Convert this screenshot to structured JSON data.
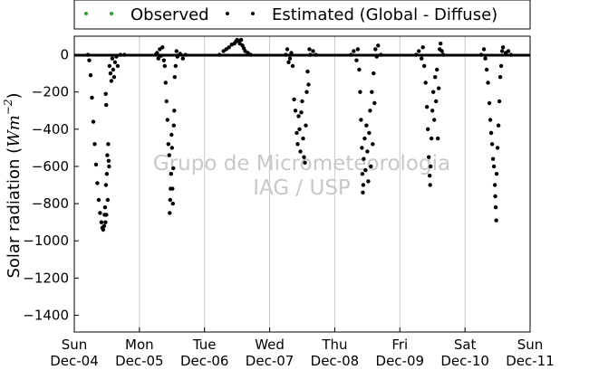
{
  "chart_data": {
    "type": "scatter",
    "ylabel": "Solar radiation",
    "ylabel_unit": "Wm",
    "ylabel_exp": "−2",
    "ylim": [
      -1490,
      100
    ],
    "yticks": [
      0,
      -200,
      -400,
      -600,
      -800,
      -1000,
      -1200,
      -1400
    ],
    "xticks": [
      {
        "day": "Sun",
        "date": "Dec-04"
      },
      {
        "day": "Mon",
        "date": "Dec-05"
      },
      {
        "day": "Tue",
        "date": "Dec-06"
      },
      {
        "day": "Wed",
        "date": "Dec-07"
      },
      {
        "day": "Thu",
        "date": "Dec-08"
      },
      {
        "day": "Fri",
        "date": "Dec-09"
      },
      {
        "day": "Sat",
        "date": "Dec-10"
      },
      {
        "day": "Sun",
        "date": "Dec-11"
      }
    ],
    "grid": "vertical",
    "legend_position": "top, outside",
    "watermark": [
      "Grupo de Micrometeorologia",
      "IAG / USP"
    ],
    "series": [
      {
        "name": "Observed",
        "color": "#2ca02c",
        "points": []
      },
      {
        "name": "Estimated (Global - Diffuse)",
        "color": "#000000",
        "points": [
          [
            "Dec-04 05:00",
            0
          ],
          [
            "Dec-04 05:30",
            -30
          ],
          [
            "Dec-04 06:00",
            -110
          ],
          [
            "Dec-04 06:30",
            -230
          ],
          [
            "Dec-04 07:00",
            -360
          ],
          [
            "Dec-04 07:30",
            -480
          ],
          [
            "Dec-04 08:00",
            -590
          ],
          [
            "Dec-04 08:30",
            -690
          ],
          [
            "Dec-04 09:00",
            -780
          ],
          [
            "Dec-04 09:30",
            -850
          ],
          [
            "Dec-04 10:00",
            -900
          ],
          [
            "Dec-04 10:20",
            -930
          ],
          [
            "Dec-04 10:40",
            -940
          ],
          [
            "Dec-04 11:00",
            -920
          ],
          [
            "Dec-04 11:10",
            -860
          ],
          [
            "Dec-04 11:20",
            -820
          ],
          [
            "Dec-04 11:30",
            -900
          ],
          [
            "Dec-04 11:40",
            -700
          ],
          [
            "Dec-04 11:50",
            -860
          ],
          [
            "Dec-04 12:00",
            -640
          ],
          [
            "Dec-04 12:10",
            -540
          ],
          [
            "Dec-04 12:20",
            -780
          ],
          [
            "Dec-04 12:30",
            -480
          ],
          [
            "Dec-04 12:40",
            -570
          ],
          [
            "Dec-04 12:50",
            -600
          ],
          [
            "Dec-04 11:35",
            -210
          ],
          [
            "Dec-04 11:45",
            -270
          ],
          [
            "Dec-04 13:00",
            -60
          ],
          [
            "Dec-04 13:20",
            -100
          ],
          [
            "Dec-04 13:40",
            -140
          ],
          [
            "Dec-04 14:00",
            -20
          ],
          [
            "Dec-04 14:20",
            -80
          ],
          [
            "Dec-04 14:40",
            -120
          ],
          [
            "Dec-04 15:00",
            -40
          ],
          [
            "Dec-04 15:30",
            -10
          ],
          [
            "Dec-04 16:00",
            -60
          ],
          [
            "Dec-04 17:00",
            0
          ],
          [
            "Dec-04 18:30",
            0
          ],
          [
            "Dec-05 06:00",
            0
          ],
          [
            "Dec-05 06:30",
            10
          ],
          [
            "Dec-05 07:00",
            -20
          ],
          [
            "Dec-05 07:30",
            30
          ],
          [
            "Dec-05 08:00",
            -5
          ],
          [
            "Dec-05 08:30",
            40
          ],
          [
            "Dec-05 09:00",
            -30
          ],
          [
            "Dec-05 09:20",
            -60
          ],
          [
            "Dec-05 09:40",
            -150
          ],
          [
            "Dec-05 10:00",
            -250
          ],
          [
            "Dec-05 10:20",
            -350
          ],
          [
            "Dec-05 10:40",
            -480
          ],
          [
            "Dec-05 11:00",
            -540
          ],
          [
            "Dec-05 11:10",
            -850
          ],
          [
            "Dec-05 11:20",
            -780
          ],
          [
            "Dec-05 11:30",
            -720
          ],
          [
            "Dec-05 11:40",
            -640
          ],
          [
            "Dec-05 11:50",
            -430
          ],
          [
            "Dec-05 12:00",
            -500
          ],
          [
            "Dec-05 12:10",
            -720
          ],
          [
            "Dec-05 12:20",
            -800
          ],
          [
            "Dec-05 12:30",
            -610
          ],
          [
            "Dec-05 12:40",
            -380
          ],
          [
            "Dec-05 12:50",
            -300
          ],
          [
            "Dec-05 13:00",
            -120
          ],
          [
            "Dec-05 13:20",
            -60
          ],
          [
            "Dec-05 13:40",
            20
          ],
          [
            "Dec-05 14:00",
            -10
          ],
          [
            "Dec-05 15:00",
            5
          ],
          [
            "Dec-05 16:00",
            -20
          ],
          [
            "Dec-05 17:00",
            0
          ],
          [
            "Dec-06 05:30",
            0
          ],
          [
            "Dec-06 07:00",
            20
          ],
          [
            "Dec-06 08:00",
            30
          ],
          [
            "Dec-06 09:00",
            40
          ],
          [
            "Dec-06 10:00",
            55
          ],
          [
            "Dec-06 11:00",
            60
          ],
          [
            "Dec-06 11:30",
            70
          ],
          [
            "Dec-06 12:00",
            80
          ],
          [
            "Dec-06 12:30",
            75
          ],
          [
            "Dec-06 13:00",
            60
          ],
          [
            "Dec-06 13:30",
            80
          ],
          [
            "Dec-06 14:00",
            50
          ],
          [
            "Dec-06 14:30",
            35
          ],
          [
            "Dec-06 15:00",
            20
          ],
          [
            "Dec-06 16:00",
            10
          ],
          [
            "Dec-06 17:00",
            0
          ],
          [
            "Dec-07 06:00",
            0
          ],
          [
            "Dec-07 06:30",
            30
          ],
          [
            "Dec-07 07:00",
            -40
          ],
          [
            "Dec-07 07:30",
            -20
          ],
          [
            "Dec-07 08:00",
            10
          ],
          [
            "Dec-07 08:30",
            -60
          ],
          [
            "Dec-07 09:00",
            -240
          ],
          [
            "Dec-07 09:30",
            -300
          ],
          [
            "Dec-07 10:00",
            -420
          ],
          [
            "Dec-07 10:20",
            -480
          ],
          [
            "Dec-07 10:40",
            -330
          ],
          [
            "Dec-07 11:00",
            -400
          ],
          [
            "Dec-07 11:20",
            -520
          ],
          [
            "Dec-07 11:40",
            -310
          ],
          [
            "Dec-07 12:00",
            -250
          ],
          [
            "Dec-07 12:20",
            -450
          ],
          [
            "Dec-07 12:40",
            -550
          ],
          [
            "Dec-07 13:00",
            -580
          ],
          [
            "Dec-07 13:20",
            -380
          ],
          [
            "Dec-07 13:40",
            -200
          ],
          [
            "Dec-07 14:00",
            -90
          ],
          [
            "Dec-07 14:20",
            -160
          ],
          [
            "Dec-07 14:40",
            30
          ],
          [
            "Dec-07 15:00",
            0
          ],
          [
            "Dec-07 16:00",
            20
          ],
          [
            "Dec-07 17:00",
            0
          ],
          [
            "Dec-08 06:00",
            0
          ],
          [
            "Dec-08 07:00",
            20
          ],
          [
            "Dec-08 08:00",
            -30
          ],
          [
            "Dec-08 08:30",
            30
          ],
          [
            "Dec-08 09:00",
            -80
          ],
          [
            "Dec-08 09:20",
            -200
          ],
          [
            "Dec-08 09:40",
            -350
          ],
          [
            "Dec-08 10:00",
            -500
          ],
          [
            "Dec-08 10:10",
            -640
          ],
          [
            "Dec-08 10:20",
            -740
          ],
          [
            "Dec-08 10:30",
            -700
          ],
          [
            "Dec-08 10:40",
            -560
          ],
          [
            "Dec-08 11:00",
            -450
          ],
          [
            "Dec-08 11:20",
            -620
          ],
          [
            "Dec-08 11:40",
            -380
          ],
          [
            "Dec-08 12:00",
            -520
          ],
          [
            "Dec-08 12:20",
            -680
          ],
          [
            "Dec-08 12:40",
            -420
          ],
          [
            "Dec-08 13:00",
            -300
          ],
          [
            "Dec-08 13:20",
            -600
          ],
          [
            "Dec-08 13:40",
            -200
          ],
          [
            "Dec-08 14:00",
            -480
          ],
          [
            "Dec-08 14:20",
            -100
          ],
          [
            "Dec-08 14:40",
            -260
          ],
          [
            "Dec-08 15:00",
            30
          ],
          [
            "Dec-08 15:30",
            -10
          ],
          [
            "Dec-08 16:00",
            50
          ],
          [
            "Dec-08 17:00",
            0
          ],
          [
            "Dec-09 06:00",
            0
          ],
          [
            "Dec-09 07:00",
            20
          ],
          [
            "Dec-09 08:00",
            -20
          ],
          [
            "Dec-09 08:30",
            40
          ],
          [
            "Dec-09 09:00",
            -60
          ],
          [
            "Dec-09 09:30",
            -150
          ],
          [
            "Dec-09 10:00",
            -280
          ],
          [
            "Dec-09 10:20",
            -400
          ],
          [
            "Dec-09 10:40",
            -550
          ],
          [
            "Dec-09 11:00",
            -650
          ],
          [
            "Dec-09 11:10",
            -700
          ],
          [
            "Dec-09 11:20",
            -600
          ],
          [
            "Dec-09 11:40",
            -450
          ],
          [
            "Dec-09 12:00",
            -300
          ],
          [
            "Dec-09 12:20",
            -200
          ],
          [
            "Dec-09 12:40",
            -350
          ],
          [
            "Dec-09 13:00",
            -120
          ],
          [
            "Dec-09 13:20",
            -250
          ],
          [
            "Dec-09 13:40",
            -80
          ],
          [
            "Dec-09 14:00",
            -450
          ],
          [
            "Dec-09 14:20",
            -180
          ],
          [
            "Dec-09 14:40",
            30
          ],
          [
            "Dec-09 15:00",
            60
          ],
          [
            "Dec-09 15:30",
            20
          ],
          [
            "Dec-09 16:00",
            0
          ],
          [
            "Dec-10 06:00",
            0
          ],
          [
            "Dec-10 07:00",
            30
          ],
          [
            "Dec-10 07:30",
            -20
          ],
          [
            "Dec-10 08:00",
            -80
          ],
          [
            "Dec-10 08:30",
            -150
          ],
          [
            "Dec-10 09:00",
            -260
          ],
          [
            "Dec-10 09:20",
            -350
          ],
          [
            "Dec-10 09:40",
            -420
          ],
          [
            "Dec-10 10:00",
            -480
          ],
          [
            "Dec-10 10:20",
            -560
          ],
          [
            "Dec-10 10:40",
            -600
          ],
          [
            "Dec-10 11:00",
            -700
          ],
          [
            "Dec-10 11:10",
            -760
          ],
          [
            "Dec-10 11:20",
            -820
          ],
          [
            "Dec-10 11:30",
            -890
          ],
          [
            "Dec-10 11:40",
            -640
          ],
          [
            "Dec-10 12:00",
            -500
          ],
          [
            "Dec-10 12:20",
            -380
          ],
          [
            "Dec-10 12:40",
            -250
          ],
          [
            "Dec-10 13:00",
            -120
          ],
          [
            "Dec-10 13:20",
            -60
          ],
          [
            "Dec-10 13:40",
            20
          ],
          [
            "Dec-10 14:00",
            40
          ],
          [
            "Dec-10 15:00",
            10
          ],
          [
            "Dec-10 16:00",
            20
          ],
          [
            "Dec-10 17:00",
            0
          ]
        ]
      }
    ]
  }
}
